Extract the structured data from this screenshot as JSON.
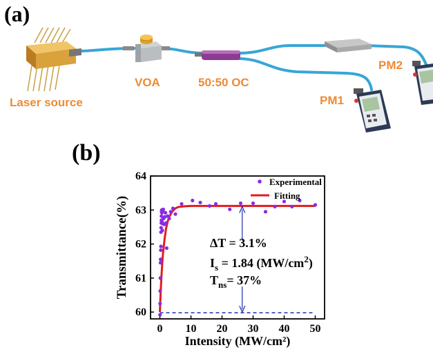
{
  "panel_a": {
    "label": "(a)",
    "components": {
      "laser": "Laser source",
      "voa": "VOA",
      "coupler": "50:50 OC",
      "pm1": "PM1",
      "pm2": "PM2"
    },
    "colors": {
      "fiber": "#37a6d6",
      "label": "#ed8b34",
      "coupler": "#8e3c93",
      "laser_body": "#d9a23c"
    }
  },
  "panel_b": {
    "label": "(b)",
    "annotations": {
      "delta_t": "ΔT = 3.1%",
      "is_main": "I",
      "is_sub": "s",
      "is_rest": " = 1.84 (MW/cm",
      "is_sup": "2",
      "is_end": ")",
      "tns_main": "T",
      "tns_sub": "ns",
      "tns_rest": "= 37%"
    }
  },
  "chart_data": {
    "type": "scatter",
    "xlabel": "Intensity (MW/cm²)",
    "ylabel": "Transmittance(%)",
    "xlim": [
      -3,
      53
    ],
    "ylim": [
      59.8,
      64
    ],
    "xticks": [
      0,
      10,
      20,
      30,
      40,
      50
    ],
    "yticks": [
      60,
      61,
      62,
      63,
      64
    ],
    "legend_position": "top-right",
    "series": [
      {
        "name": "Experimental",
        "kind": "scatter",
        "color": "#8a2be2",
        "points": [
          [
            0.05,
            59.92
          ],
          [
            0.08,
            60.25
          ],
          [
            0.1,
            60.62
          ],
          [
            0.15,
            61.0
          ],
          [
            0.2,
            61.45
          ],
          [
            0.25,
            61.55
          ],
          [
            0.3,
            61.82
          ],
          [
            0.35,
            61.93
          ],
          [
            0.35,
            62.35
          ],
          [
            0.4,
            62.48
          ],
          [
            0.45,
            62.62
          ],
          [
            0.5,
            62.7
          ],
          [
            0.5,
            62.82
          ],
          [
            0.55,
            62.95
          ],
          [
            0.6,
            63.0
          ],
          [
            0.65,
            62.92
          ],
          [
            0.7,
            62.65
          ],
          [
            0.8,
            62.4
          ],
          [
            0.9,
            62.6
          ],
          [
            1.0,
            62.98
          ],
          [
            1.1,
            63.02
          ],
          [
            1.2,
            62.75
          ],
          [
            1.4,
            62.58
          ],
          [
            1.6,
            62.8
          ],
          [
            1.8,
            62.92
          ],
          [
            2.0,
            62.62
          ],
          [
            2.2,
            61.88
          ],
          [
            2.5,
            62.82
          ],
          [
            3.0,
            62.75
          ],
          [
            3.5,
            62.95
          ],
          [
            4.2,
            63.05
          ],
          [
            5.0,
            62.88
          ],
          [
            7.0,
            63.18
          ],
          [
            10.5,
            63.28
          ],
          [
            13.0,
            63.22
          ],
          [
            16.0,
            63.12
          ],
          [
            18.0,
            63.18
          ],
          [
            22.5,
            63.02
          ],
          [
            26.0,
            63.2
          ],
          [
            30.0,
            63.2
          ],
          [
            34.0,
            62.95
          ],
          [
            37.0,
            63.1
          ],
          [
            40.0,
            63.25
          ],
          [
            42.5,
            63.1
          ],
          [
            45.0,
            63.28
          ],
          [
            50.0,
            63.15
          ]
        ]
      },
      {
        "name": "Fitting",
        "kind": "line",
        "color": "#e31a1c",
        "formula": "63.12 - 3.12*exp(-x/1.3)",
        "x": [
          0,
          0.25,
          0.5,
          0.75,
          1,
          1.5,
          2,
          2.5,
          3,
          4,
          5,
          6,
          8,
          10,
          15,
          20,
          30,
          40,
          50
        ],
        "y": [
          60.0,
          60.57,
          61.05,
          61.42,
          61.72,
          62.14,
          62.46,
          62.66,
          62.8,
          62.96,
          63.05,
          63.09,
          63.11,
          63.12,
          63.12,
          63.12,
          63.12,
          63.12,
          63.12
        ]
      },
      {
        "name": "",
        "kind": "dashed-line",
        "color": "#1a2ea6",
        "x": [
          0,
          50
        ],
        "y": [
          59.98,
          59.98
        ]
      }
    ]
  }
}
